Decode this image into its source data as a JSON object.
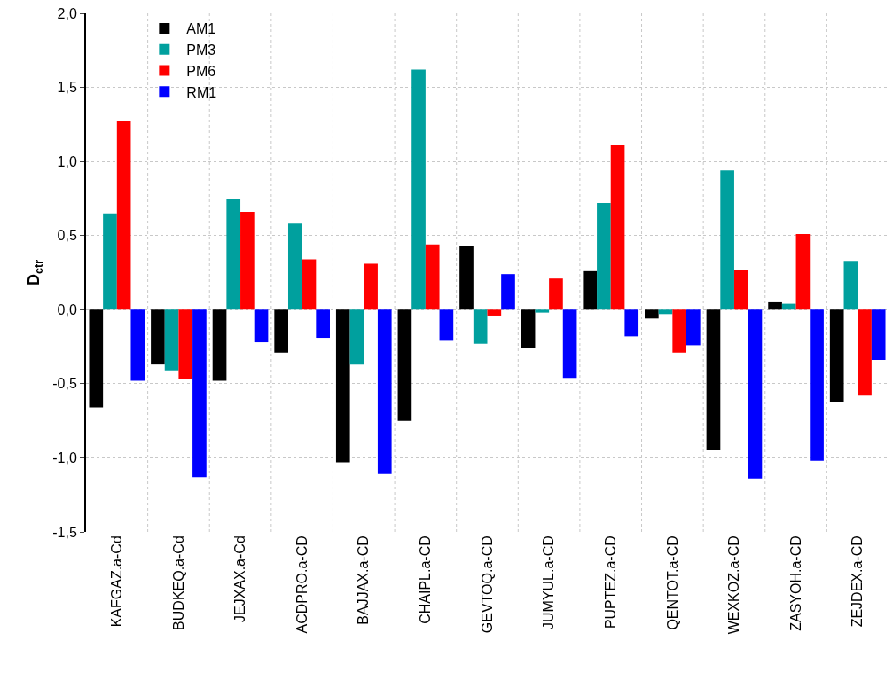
{
  "chart_data": {
    "type": "bar",
    "ylabel": "D$_{ctr}$",
    "categories": [
      "KAFGAZ.a-Cd",
      "BUDKEQ.a-Cd",
      "JEJXAX.a-Cd",
      "ACDPRO.a-CD",
      "BAJJAX.a-CD",
      "CHAIPL.a-CD",
      "GEVTOQ.a-CD",
      "JUMYUL.a-CD",
      "PUPTEZ.a-CD",
      "QENTOT.a-CD",
      "WEXKOZ.a-CD",
      "ZASYOH.a-CD",
      "ZEJDEX.a-CD"
    ],
    "series": [
      {
        "name": "AM1",
        "color": "#000000",
        "values": [
          -0.66,
          -0.37,
          -0.48,
          -0.29,
          -1.03,
          -0.75,
          0.43,
          -0.26,
          0.26,
          -0.06,
          -0.95,
          0.05,
          -0.62
        ]
      },
      {
        "name": "PM3",
        "color": "#00a09e",
        "values": [
          0.65,
          -0.41,
          0.75,
          0.58,
          -0.37,
          1.62,
          -0.23,
          -0.02,
          0.72,
          -0.03,
          0.94,
          0.04,
          0.33
        ]
      },
      {
        "name": "PM6",
        "color": "#ff0000",
        "values": [
          1.27,
          -0.47,
          0.66,
          0.34,
          0.31,
          0.44,
          -0.04,
          0.21,
          1.11,
          -0.29,
          0.27,
          0.51,
          -0.58
        ]
      },
      {
        "name": "RM1",
        "color": "#0000ff",
        "values": [
          -0.48,
          -1.13,
          -0.22,
          -0.19,
          -1.11,
          -0.21,
          0.24,
          -0.46,
          -0.18,
          -0.24,
          -1.14,
          -1.02,
          -0.34
        ]
      }
    ],
    "ylim": [
      -1.5,
      2.0
    ],
    "yticks": [
      {
        "value": -1.5,
        "label": "-1,5"
      },
      {
        "value": -1.0,
        "label": "-1,0"
      },
      {
        "value": -0.5,
        "label": "-0,5"
      },
      {
        "value": 0.0,
        "label": "0,0"
      },
      {
        "value": 0.5,
        "label": "0,5"
      },
      {
        "value": 1.0,
        "label": "1,0"
      },
      {
        "value": 1.5,
        "label": "1,5"
      },
      {
        "value": 2.0,
        "label": "2,0"
      }
    ],
    "grid": true,
    "legend": "top left"
  }
}
